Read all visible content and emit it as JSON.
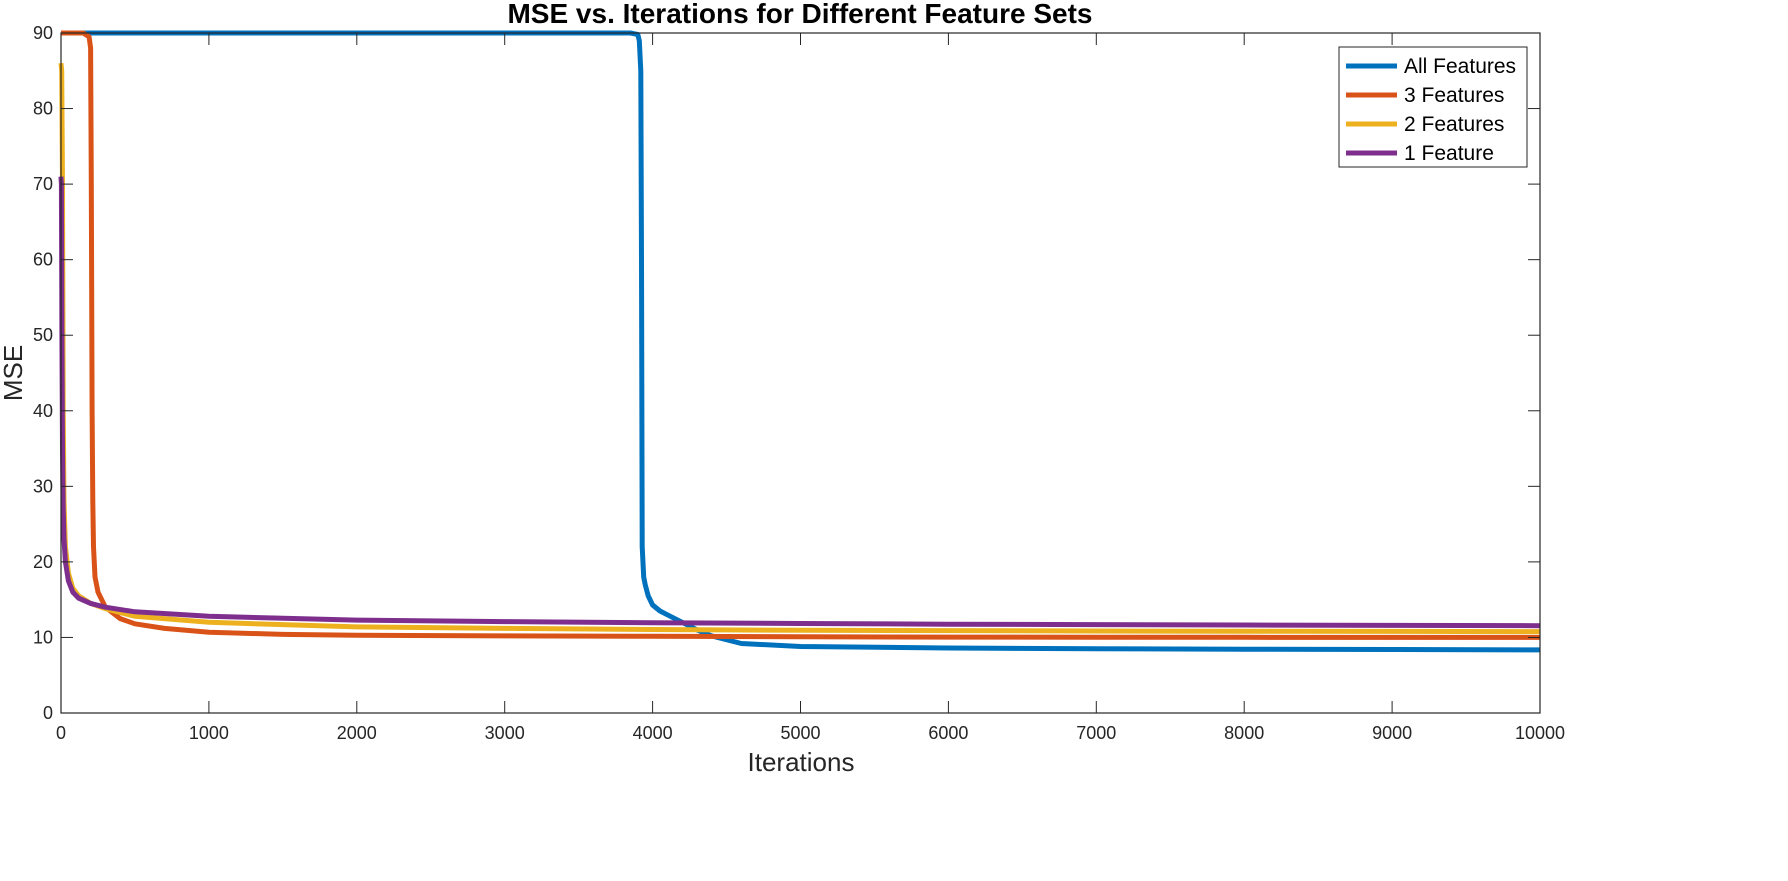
{
  "chart_data": {
    "type": "line",
    "title": "MSE vs. Iterations for Different Feature Sets",
    "xlabel": "Iterations",
    "ylabel": "MSE",
    "xlim": [
      0,
      10000
    ],
    "ylim": [
      0,
      90
    ],
    "xticks": [
      0,
      1000,
      2000,
      3000,
      4000,
      5000,
      6000,
      7000,
      8000,
      9000,
      10000
    ],
    "yticks": [
      0,
      10,
      20,
      30,
      40,
      50,
      60,
      70,
      80,
      90
    ],
    "grid": false,
    "legend_position": "top-right",
    "series": [
      {
        "name": "All Features",
        "color": "#0072BD",
        "x": [
          0,
          3000,
          3850,
          3900,
          3910,
          3920,
          3925,
          3930,
          3940,
          3950,
          3970,
          4000,
          4050,
          4100,
          4200,
          4300,
          4400,
          4600,
          5000,
          6000,
          7000,
          8000,
          9000,
          10000
        ],
        "y": [
          90,
          90,
          90,
          89.8,
          89,
          85,
          60,
          22,
          18,
          17,
          15.5,
          14.3,
          13.5,
          13,
          12,
          11,
          10.2,
          9.2,
          8.8,
          8.6,
          8.5,
          8.45,
          8.4,
          8.35
        ]
      },
      {
        "name": "3 Features",
        "color": "#D95319",
        "x": [
          0,
          150,
          190,
          200,
          205,
          210,
          215,
          220,
          230,
          250,
          300,
          400,
          500,
          700,
          1000,
          1500,
          2000,
          3000,
          4000,
          5000,
          6000,
          7000,
          8000,
          9000,
          10000
        ],
        "y": [
          90,
          90,
          89.5,
          88,
          70,
          40,
          28,
          22,
          18,
          16,
          14,
          12.5,
          11.8,
          11.2,
          10.7,
          10.4,
          10.3,
          10.2,
          10.15,
          10.1,
          10.05,
          10.03,
          10.02,
          10.01,
          10
        ]
      },
      {
        "name": "2 Features",
        "color": "#EDB120",
        "x": [
          0,
          5,
          10,
          15,
          20,
          30,
          50,
          80,
          120,
          200,
          300,
          500,
          1000,
          2000,
          3000,
          4000,
          5000,
          6000,
          7000,
          8000,
          9000,
          10000
        ],
        "y": [
          86,
          85,
          70,
          40,
          28,
          22,
          18.5,
          16.5,
          15.5,
          14.5,
          13.8,
          12.8,
          12,
          11.4,
          11.2,
          11.05,
          10.95,
          10.9,
          10.85,
          10.82,
          10.8,
          10.78
        ]
      },
      {
        "name": "1 Feature",
        "color": "#7E2F8E",
        "x": [
          0,
          3,
          6,
          10,
          15,
          20,
          30,
          50,
          80,
          120,
          200,
          300,
          500,
          1000,
          2000,
          3000,
          4000,
          5000,
          6000,
          7000,
          8000,
          9000,
          10000
        ],
        "y": [
          71,
          70,
          50,
          35,
          27,
          23,
          20,
          17.5,
          16,
          15.2,
          14.5,
          14,
          13.4,
          12.8,
          12.3,
          12.1,
          11.95,
          11.85,
          11.75,
          11.7,
          11.65,
          11.6,
          11.55
        ]
      }
    ]
  }
}
